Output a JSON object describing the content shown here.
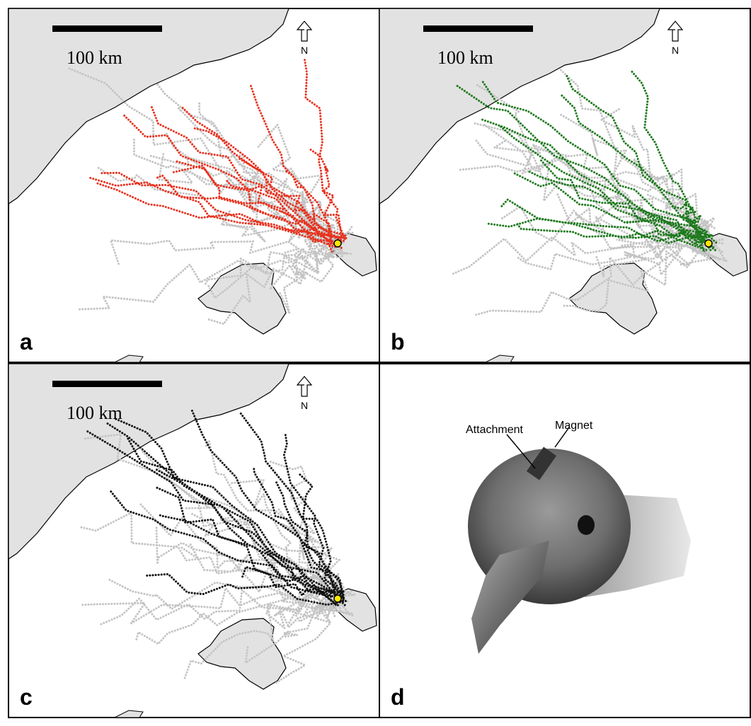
{
  "panels": [
    {
      "label": "a",
      "scale_label": "100 km",
      "north_label": "N"
    },
    {
      "label": "b",
      "scale_label": "100 km",
      "north_label": "N"
    },
    {
      "label": "c",
      "scale_label": "100 km",
      "north_label": "N"
    },
    {
      "label": "d",
      "annotations": [
        "Attachment",
        "Magnet"
      ]
    }
  ]
}
